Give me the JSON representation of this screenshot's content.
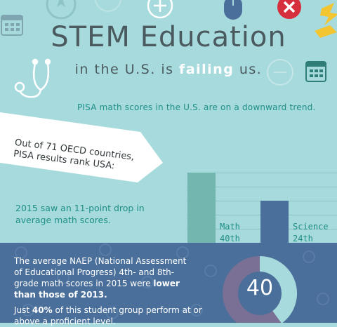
{
  "header": {
    "title": "STEM Education",
    "subtitle_pre": "in the U.S. is ",
    "subtitle_hl": "failing",
    "subtitle_post": " us."
  },
  "pisa": {
    "note": "PISA math scores in the U.S. are on a downward trend.",
    "banner_line1": "Out of 71 OECD countries,",
    "banner_line2": "PISA results rank USA:",
    "drop_line1": "2015 saw an 11-point drop in",
    "drop_line2": "average math scores."
  },
  "chart_data": {
    "type": "bar",
    "categories": [
      "Math",
      "Science"
    ],
    "values": [
      "40th",
      "24th"
    ],
    "ranks": [
      40,
      24
    ],
    "colors": [
      "#73b6b0",
      "#4a6f9a"
    ]
  },
  "naep": {
    "p1_a": "The average NAEP (National Assessment of Educational Progress) 4th- and 8th-grade math scores in 2015 were ",
    "p1_b": "lower than those of 2013.",
    "p2_a": "Just ",
    "p2_b": "40%",
    "p2_c": " of this student group perform at or above a proficient level.",
    "donut_value": "40",
    "donut_fraction": 0.4
  },
  "colors": {
    "background": "#a7dadd",
    "accent": "#1e8f86",
    "navy": "#4a6f9a",
    "red": "#d62e3c",
    "yellow": "#f2c531"
  }
}
